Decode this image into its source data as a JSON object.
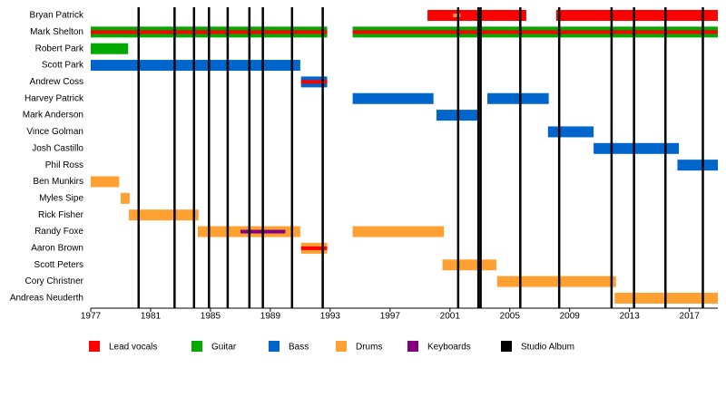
{
  "chart_data": {
    "type": "timeline",
    "xlim": [
      1977,
      2018.9
    ],
    "xticks": [
      1977,
      1981,
      1985,
      1989,
      1993,
      1997,
      2001,
      2005,
      2009,
      2013,
      2017
    ],
    "roles": [
      {
        "name": "Lead vocals",
        "color": "#ff0000"
      },
      {
        "name": "Guitar",
        "color": "#00aa00"
      },
      {
        "name": "Bass",
        "color": "#0066cc"
      },
      {
        "name": "Drums",
        "color": "#ffa033"
      },
      {
        "name": "Keyboards",
        "color": "#800080"
      },
      {
        "name": "Studio Album",
        "color": "#000000"
      }
    ],
    "albums": [
      1980.2,
      1982.6,
      1983.9,
      1984.9,
      1986.15,
      1987.6,
      1988.5,
      1990.45,
      1992.5,
      2001.55,
      2002.9,
      2003.05,
      2005.7,
      2008.3,
      2011.8,
      2013.3,
      2015.4,
      2017.9
    ],
    "rows": [
      {
        "name": "Bryan Patrick",
        "spans": [
          {
            "start": 1999.5,
            "end": 2006.1,
            "role": "Lead vocals"
          },
          {
            "start": 2008.1,
            "end": 2018.9,
            "role": "Lead vocals"
          }
        ],
        "stripes": [
          {
            "start": 2001.2,
            "end": 2001.7,
            "role": "Drums"
          }
        ]
      },
      {
        "name": "Mark Shelton",
        "spans": [
          {
            "start": 1977,
            "end": 1992.8,
            "role": "Guitar"
          },
          {
            "start": 1994.5,
            "end": 2018.9,
            "role": "Guitar"
          }
        ],
        "stripes": [
          {
            "start": 1977,
            "end": 1992.8,
            "role": "Lead vocals"
          },
          {
            "start": 1994.5,
            "end": 2018.9,
            "role": "Lead vocals"
          }
        ]
      },
      {
        "name": "Robert Park",
        "spans": [
          {
            "start": 1977,
            "end": 1979.5,
            "role": "Guitar"
          }
        ],
        "stripes": []
      },
      {
        "name": "Scott Park",
        "spans": [
          {
            "start": 1977,
            "end": 1991,
            "role": "Bass"
          }
        ],
        "stripes": []
      },
      {
        "name": "Andrew Coss",
        "spans": [
          {
            "start": 1991.05,
            "end": 1992.8,
            "role": "Bass"
          }
        ],
        "stripes": [
          {
            "start": 1991.05,
            "end": 1992.8,
            "role": "Lead vocals"
          }
        ]
      },
      {
        "name": "Harvey Patrick",
        "spans": [
          {
            "start": 1994.5,
            "end": 1999.9,
            "role": "Bass"
          },
          {
            "start": 2003.5,
            "end": 2007.6,
            "role": "Bass"
          }
        ],
        "stripes": []
      },
      {
        "name": "Mark Anderson",
        "spans": [
          {
            "start": 2000.1,
            "end": 2002.95,
            "role": "Bass"
          }
        ],
        "stripes": []
      },
      {
        "name": "Vince Golman",
        "spans": [
          {
            "start": 2007.55,
            "end": 2010.6,
            "role": "Bass"
          }
        ],
        "stripes": []
      },
      {
        "name": "Josh Castillo",
        "spans": [
          {
            "start": 2010.6,
            "end": 2016.3,
            "role": "Bass"
          }
        ],
        "stripes": []
      },
      {
        "name": "Phil Ross",
        "spans": [
          {
            "start": 2016.2,
            "end": 2018.9,
            "role": "Bass"
          }
        ],
        "stripes": []
      },
      {
        "name": "Ben Munkirs",
        "spans": [
          {
            "start": 1977,
            "end": 1978.9,
            "role": "Drums"
          }
        ],
        "stripes": []
      },
      {
        "name": "Myles Sipe",
        "spans": [
          {
            "start": 1979,
            "end": 1979.6,
            "role": "Drums"
          }
        ],
        "stripes": []
      },
      {
        "name": "Rick Fisher",
        "spans": [
          {
            "start": 1979.55,
            "end": 1984.2,
            "role": "Drums"
          }
        ],
        "stripes": []
      },
      {
        "name": "Randy Foxe",
        "spans": [
          {
            "start": 1984.15,
            "end": 1991,
            "role": "Drums"
          },
          {
            "start": 1994.5,
            "end": 2000.6,
            "role": "Drums"
          }
        ],
        "stripes": [
          {
            "start": 1987,
            "end": 1990,
            "role": "Keyboards"
          }
        ]
      },
      {
        "name": "Aaron Brown",
        "spans": [
          {
            "start": 1991.05,
            "end": 1992.8,
            "role": "Drums"
          }
        ],
        "stripes": [
          {
            "start": 1991.05,
            "end": 1992.8,
            "role": "Lead vocals"
          }
        ]
      },
      {
        "name": "Scott Peters",
        "spans": [
          {
            "start": 2000.5,
            "end": 2004.1,
            "role": "Drums"
          }
        ],
        "stripes": []
      },
      {
        "name": "Cory Christner",
        "spans": [
          {
            "start": 2004.15,
            "end": 2012.1,
            "role": "Drums"
          }
        ],
        "stripes": []
      },
      {
        "name": "Andreas Neuderth",
        "spans": [
          {
            "start": 2012,
            "end": 2018.9,
            "role": "Drums"
          }
        ],
        "stripes": []
      }
    ]
  }
}
